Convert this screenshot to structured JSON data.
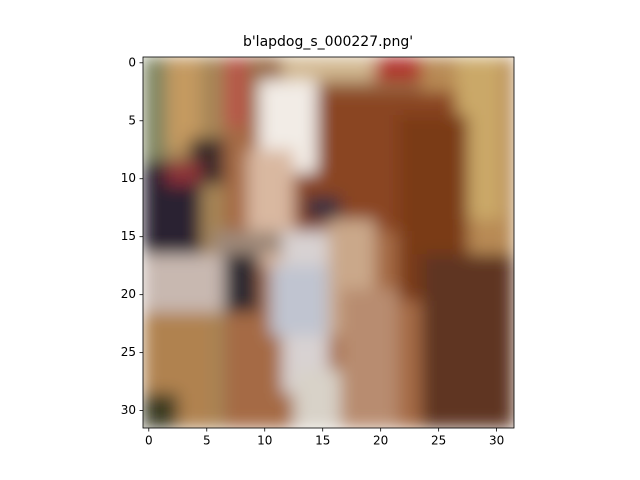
{
  "chart_data": {
    "type": "image",
    "title": "b'lapdog_s_000227.png'",
    "xlim": [
      -0.5,
      31.5
    ],
    "ylim": [
      31.5,
      -0.5
    ],
    "xticks": [
      0,
      5,
      10,
      15,
      20,
      25,
      30
    ],
    "yticks": [
      0,
      5,
      10,
      15,
      20,
      25,
      30
    ]
  }
}
